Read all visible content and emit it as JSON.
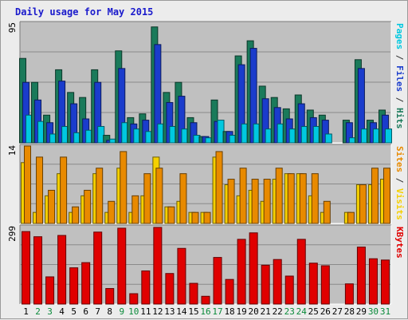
{
  "chart_data": {
    "type": "bar",
    "title": "Daily usage for May 2015",
    "categories": [
      "1",
      "2",
      "3",
      "4",
      "5",
      "6",
      "7",
      "8",
      "9",
      "10",
      "11",
      "12",
      "13",
      "14",
      "15",
      "16",
      "17",
      "18",
      "19",
      "20",
      "21",
      "22",
      "23",
      "24",
      "25",
      "26",
      "27",
      "28",
      "29",
      "30",
      "31"
    ],
    "weekend_days": [
      "2",
      "3",
      "9",
      "10",
      "16",
      "17",
      "23",
      "24",
      "30",
      "31"
    ],
    "panels": [
      {
        "id": "top",
        "ymax_label": "95",
        "ymax": 95,
        "right_labels": [
          {
            "text": "Pages",
            "color": "#00c8e0"
          },
          {
            "text": " / ",
            "color": "#333333"
          },
          {
            "text": "Files",
            "color": "#1a3ccc"
          },
          {
            "text": " / ",
            "color": "#333333"
          },
          {
            "text": "Hits",
            "color": "#1a7a5a"
          }
        ],
        "series": [
          {
            "name": "Hits",
            "color": "#1a7a5a",
            "values": [
              67,
              48,
              22,
              58,
              40,
              36,
              58,
              6,
              73,
              20,
              23,
              92,
              40,
              48,
              20,
              5,
              34,
              9,
              69,
              81,
              45,
              36,
              27,
              38,
              26,
              22,
              0,
              18,
              66,
              18,
              26
            ]
          },
          {
            "name": "Files",
            "color": "#1a3ccc",
            "values": [
              48,
              34,
              16,
              49,
              31,
              19,
              48,
              2,
              59,
              15,
              18,
              78,
              32,
              37,
              16,
              5,
              17,
              9,
              62,
              75,
              35,
              28,
              19,
              31,
              20,
              18,
              0,
              16,
              59,
              16,
              22
            ]
          },
          {
            "name": "Pages",
            "color": "#00c8e0",
            "values": [
              22,
              17,
              7,
              13,
              8,
              10,
              13,
              3,
              16,
              11,
              9,
              15,
              13,
              11,
              6,
              4,
              18,
              6,
              15,
              15,
              11,
              15,
              11,
              13,
              13,
              7,
              0,
              4,
              11,
              11,
              11
            ]
          }
        ]
      },
      {
        "id": "middle",
        "ymax_label": "14",
        "ymax": 14,
        "right_labels": [
          {
            "text": "Sites",
            "color": "#e88a00"
          },
          {
            "text": " / ",
            "color": "#333333"
          },
          {
            "text": "Visits",
            "color": "#f5d000"
          }
        ],
        "series": [
          {
            "name": "Visits",
            "color": "#f5d000",
            "values": [
              11,
              2,
              5,
              9,
              2,
              5,
              9,
              2,
              10,
              2,
              5,
              12,
              3,
              4,
              2,
              2,
              12,
              7,
              5,
              6,
              4,
              8,
              9,
              9,
              5,
              2,
              0,
              2,
              7,
              7,
              8
            ]
          },
          {
            "name": "Sites",
            "color": "#e88a00",
            "values": [
              14,
              12,
              6,
              12,
              3,
              6,
              10,
              4,
              13,
              5,
              9,
              10,
              3,
              9,
              2,
              2,
              13,
              8,
              10,
              8,
              8,
              10,
              9,
              9,
              9,
              4,
              0,
              2,
              7,
              10,
              10
            ]
          }
        ]
      },
      {
        "id": "bottom",
        "ymax_label": "299",
        "ymax": 299,
        "right_labels": [
          {
            "text": "KBytes",
            "color": "#e00000"
          }
        ],
        "series": [
          {
            "name": "KBytes",
            "color": "#e00000",
            "values": [
              280,
              260,
              105,
              265,
              140,
              160,
              278,
              60,
              293,
              40,
              128,
              296,
              118,
              215,
              80,
              30,
              180,
              95,
              250,
              275,
              150,
              172,
              108,
              250,
              158,
              148,
              0,
              78,
              220,
              175,
              170
            ]
          }
        ]
      }
    ]
  }
}
